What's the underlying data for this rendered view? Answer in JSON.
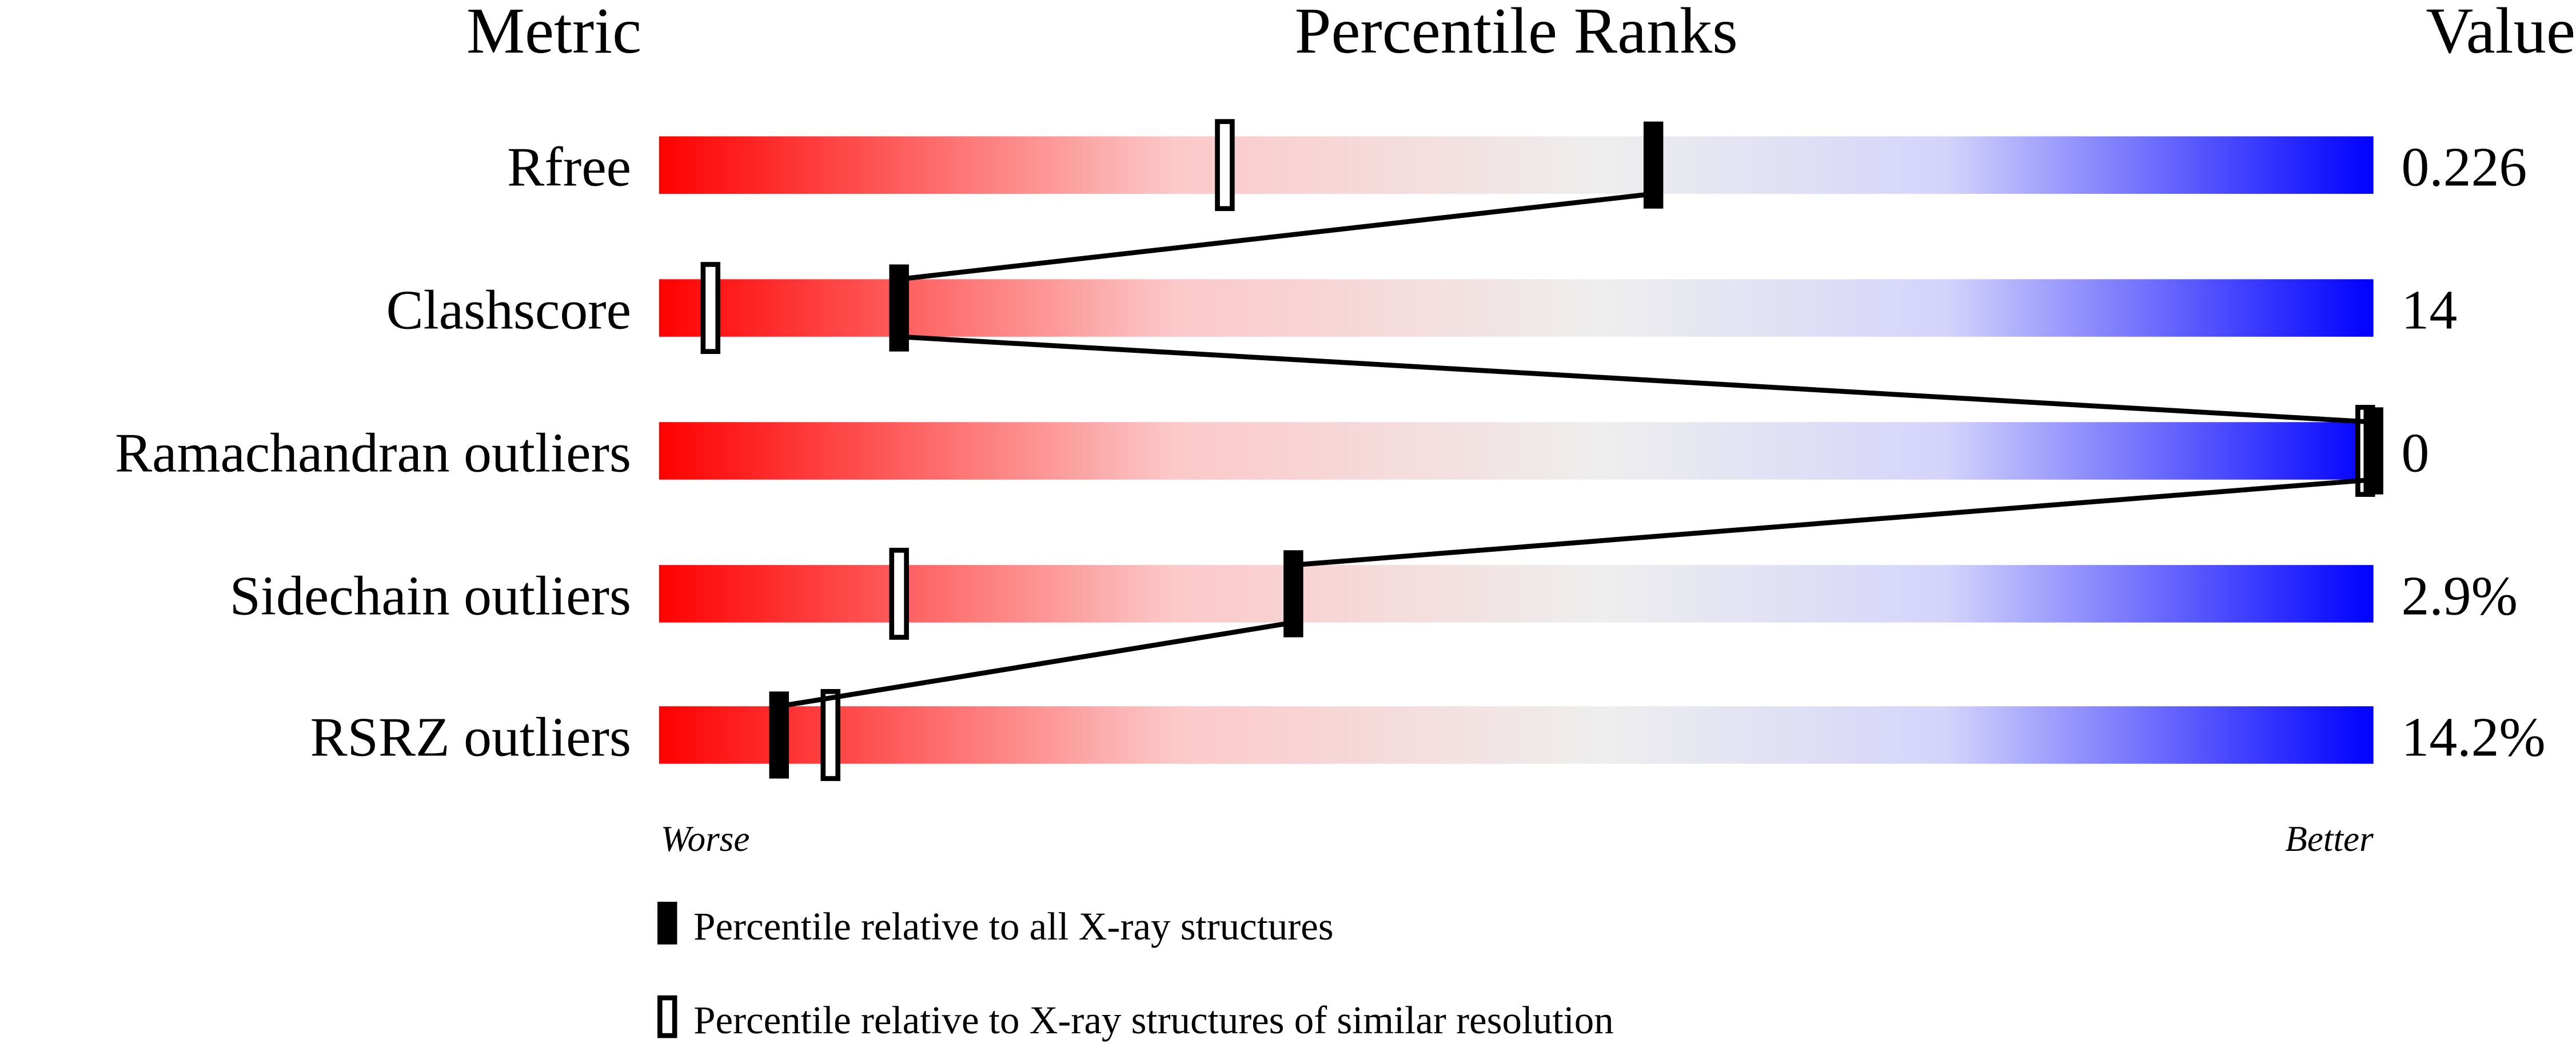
{
  "chart_data": {
    "type": "bar",
    "title_left": "Metric",
    "title_center": "Percentile Ranks",
    "title_right": "Value",
    "xlim": [
      0,
      100
    ],
    "worse_label": "Worse",
    "better_label": "Better",
    "colors": {
      "worse": "#ff0000",
      "middle": "#eeeeee",
      "better": "#0000ff",
      "marker": "#000000"
    },
    "metrics": [
      {
        "name": "Rfree",
        "value": "0.226",
        "percentile_all": 58,
        "percentile_similar": 33
      },
      {
        "name": "Clashscore",
        "value": "14",
        "percentile_all": 14,
        "percentile_similar": 3
      },
      {
        "name": "Ramachandran outliers",
        "value": "0",
        "percentile_all": 100,
        "percentile_similar": 100
      },
      {
        "name": "Sidechain outliers",
        "value": "2.9%",
        "percentile_all": 37,
        "percentile_similar": 14
      },
      {
        "name": "RSRZ outliers",
        "value": "14.2%",
        "percentile_all": 7,
        "percentile_similar": 10
      }
    ],
    "legend": [
      {
        "marker": "filled",
        "label": "Percentile relative to all X-ray structures"
      },
      {
        "marker": "open",
        "label": "Percentile relative to X-ray structures of similar resolution"
      }
    ]
  }
}
